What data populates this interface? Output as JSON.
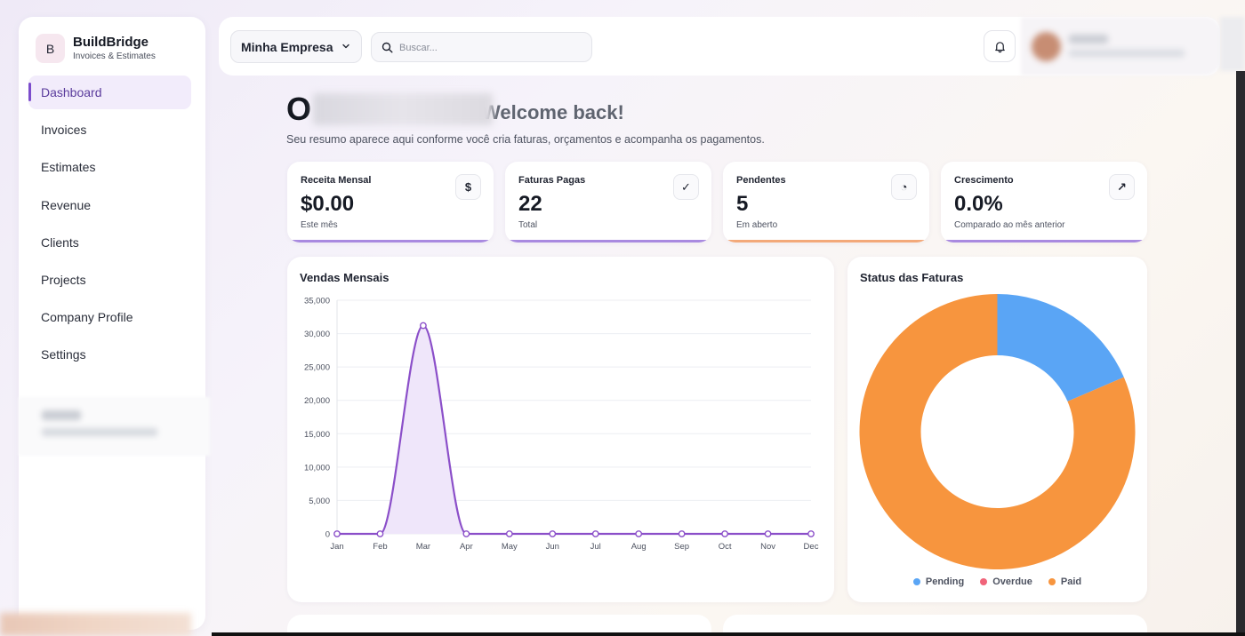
{
  "brand": {
    "logo_letter": "B",
    "name": "BuildBridge",
    "tagline": "Invoices & Estimates"
  },
  "sidebar": {
    "items": [
      {
        "label": "Dashboard",
        "active": true
      },
      {
        "label": "Invoices"
      },
      {
        "label": "Estimates"
      },
      {
        "label": "Revenue"
      },
      {
        "label": "Clients"
      },
      {
        "label": "Projects"
      },
      {
        "label": "Company Profile"
      },
      {
        "label": "Settings"
      }
    ]
  },
  "header": {
    "company": "Minha Empresa",
    "search_placeholder": "Buscar..."
  },
  "greeting": {
    "prefix": "O",
    "welcome": "Welcome back!",
    "subtitle": "Seu resumo aparece aqui conforme você cria faturas, orçamentos e acompanha os pagamentos."
  },
  "stats": [
    {
      "label": "Receita Mensal",
      "value": "$0.00",
      "sub": "Este mês",
      "icon": "dollar-icon",
      "glyph": "$",
      "bar_color": "#a98ae0"
    },
    {
      "label": "Faturas Pagas",
      "value": "22",
      "sub": "Total",
      "icon": "check-icon",
      "glyph": "✓",
      "bar_color": "#a98ae0"
    },
    {
      "label": "Pendentes",
      "value": "5",
      "sub": "Em aberto",
      "icon": "clock-icon",
      "glyph": "◔",
      "bar_color": "#f3a97a"
    },
    {
      "label": "Crescimento",
      "value": "0.0%",
      "sub": "Comparado ao mês anterior",
      "icon": "arrow-up-right-icon",
      "glyph": "↗",
      "bar_color": "#a98ae0"
    }
  ],
  "sales": {
    "title": "Vendas Mensais",
    "chart_data": {
      "type": "line",
      "x": [
        "Jan",
        "Feb",
        "Mar",
        "Apr",
        "May",
        "Jun",
        "Jul",
        "Aug",
        "Sep",
        "Oct",
        "Nov",
        "Dec"
      ],
      "values": [
        0,
        0,
        31200,
        0,
        0,
        0,
        0,
        0,
        0,
        0,
        0,
        0
      ],
      "y_ticks": [
        "35,000",
        "30,000",
        "25,000",
        "20,000",
        "15,000",
        "10,000",
        "5,000",
        "0"
      ],
      "ylim": [
        0,
        35000
      ],
      "grid": true,
      "line_color": "#8b4fc9",
      "fill_color": "#efe6fa"
    }
  },
  "invoice_status": {
    "title": "Status das Faturas",
    "chart_data": {
      "type": "pie",
      "labels": [
        "Pending",
        "Overdue",
        "Paid"
      ],
      "values": [
        5,
        0,
        22
      ],
      "colors": [
        "#5aa5f5",
        "#f0647a",
        "#f7953e"
      ],
      "donut": true,
      "legend": "bottom"
    }
  }
}
